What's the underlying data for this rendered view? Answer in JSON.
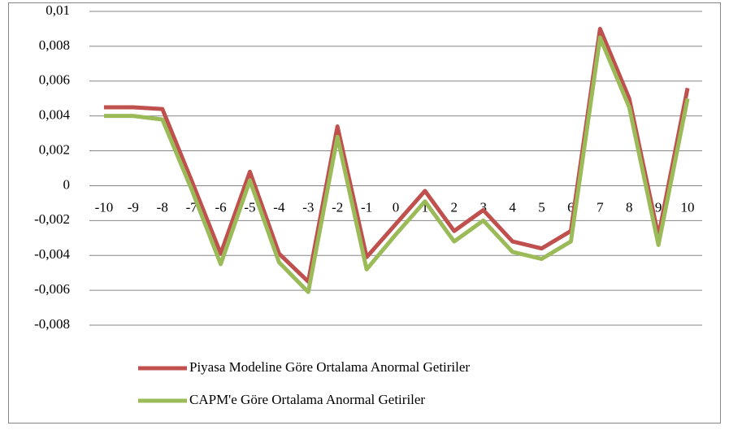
{
  "chart_data": {
    "type": "line",
    "categories": [
      "-10",
      "-9",
      "-8",
      "-7",
      "-6",
      "-5",
      "-4",
      "-3",
      "-2",
      "-1",
      "0",
      "1",
      "2",
      "3",
      "4",
      "5",
      "6",
      "7",
      "8",
      "9",
      "10"
    ],
    "series": [
      {
        "name": "Piyasa Modeline Göre Ortalama Anormal Getiriler",
        "color": "#c0504d",
        "values": [
          0.0045,
          0.0045,
          0.0044,
          0.0003,
          -0.0039,
          0.0008,
          -0.0039,
          -0.0055,
          0.0034,
          -0.0041,
          -0.0022,
          -0.0003,
          -0.0026,
          -0.0014,
          -0.0032,
          -0.0036,
          -0.0026,
          0.009,
          0.005,
          -0.0029,
          0.0056
        ]
      },
      {
        "name": "CAPM'e Göre Ortalama Anormal Getiriler",
        "color": "#9bbb59",
        "values": [
          0.004,
          0.004,
          0.0038,
          -0.0002,
          -0.0045,
          0.0003,
          -0.0044,
          -0.0061,
          0.0028,
          -0.0048,
          -0.0028,
          -0.0009,
          -0.0032,
          -0.002,
          -0.0038,
          -0.0042,
          -0.0032,
          0.0085,
          0.0045,
          -0.0034,
          0.005
        ]
      }
    ],
    "ylim": [
      -0.008,
      0.01
    ],
    "yticks": [
      {
        "value": 0.01,
        "label": "0,01"
      },
      {
        "value": 0.008,
        "label": "0,008"
      },
      {
        "value": 0.006,
        "label": "0,006"
      },
      {
        "value": 0.004,
        "label": "0,004"
      },
      {
        "value": 0.002,
        "label": "0,002"
      },
      0,
      {
        "value": -0.002,
        "label": "-0,002"
      },
      {
        "value": -0.004,
        "label": "-0,004"
      },
      {
        "value": -0.006,
        "label": "-0,006"
      },
      {
        "value": -0.008,
        "label": "-0,008"
      }
    ],
    "grid": true,
    "legend": "bottom"
  }
}
